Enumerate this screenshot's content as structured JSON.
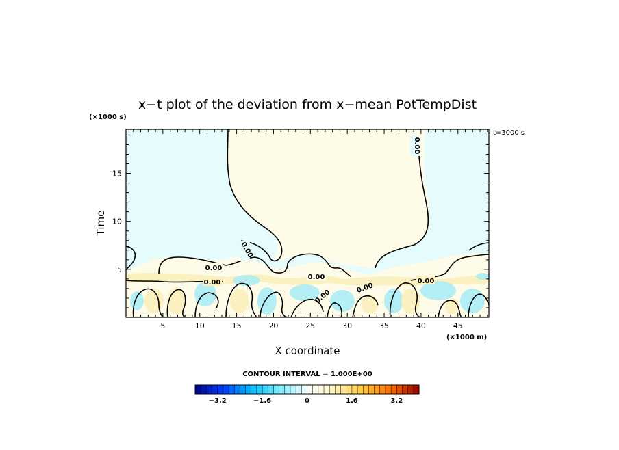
{
  "chart_data": {
    "type": "heatmap",
    "title": "x−t plot of the deviation from x−mean PotTempDist",
    "xlabel": "X coordinate",
    "ylabel": "Time",
    "x_unit": "(×1000 m)",
    "y_unit": "(×1000 s)",
    "time_stamp": "t=3000 s",
    "xlim": [
      0,
      49.2
    ],
    "ylim": [
      0,
      19.6
    ],
    "x_ticks": [
      5,
      10,
      15,
      20,
      25,
      30,
      35,
      40,
      45
    ],
    "y_ticks": [
      5,
      10,
      15
    ],
    "contour_label": "0.00",
    "contour_interval_text": "CONTOUR INTERVAL = 1.000E+00",
    "colorbar": {
      "range": [
        -4.0,
        4.0
      ],
      "step": 0.2,
      "tick_values": [
        -3.2,
        -1.6,
        0,
        1.6,
        3.2
      ],
      "tick_labels": [
        "−3.2",
        "−1.6",
        "0",
        "1.6",
        "3.2"
      ]
    },
    "colors": {
      "near_zero_negative": "#e6fcfc",
      "near_zero_positive": "#fffbe9",
      "small_negative": "#a8ecf8",
      "small_positive": "#fbf0c0"
    }
  }
}
